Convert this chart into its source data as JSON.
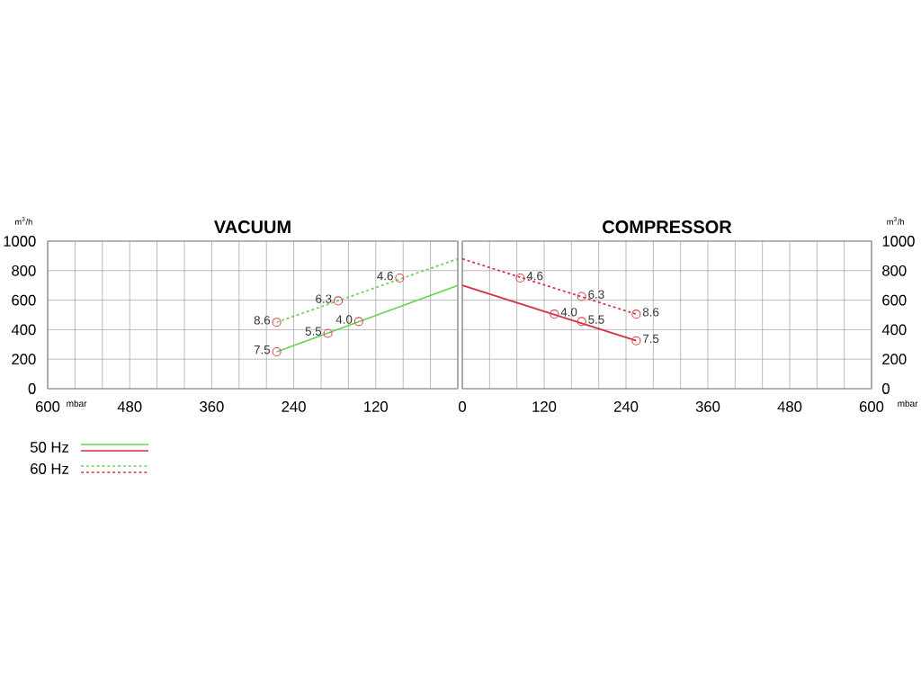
{
  "chart_data": [
    {
      "type": "line",
      "title": "VACUUM",
      "xlabel": "mbar",
      "ylabel": "m$^{3}$/h",
      "xlim": [
        600,
        0
      ],
      "ylim": [
        0,
        1000
      ],
      "xticks": [
        {
          "value": 0,
          "label": null
        },
        {
          "value": 40,
          "label": null
        },
        {
          "value": 80,
          "label": null
        },
        120,
        {
          "value": 160,
          "label": null
        },
        {
          "value": 200,
          "label": null
        },
        240,
        {
          "value": 280,
          "label": null
        },
        {
          "value": 320,
          "label": null
        },
        360,
        {
          "value": 400,
          "label": null
        },
        {
          "value": 440,
          "label": null
        },
        480,
        {
          "value": 520,
          "label": null
        },
        {
          "value": 560,
          "label": null
        },
        600
      ],
      "yticks": [
        0,
        200,
        400,
        600,
        800,
        1000
      ],
      "grid": true,
      "legend": "bottom left",
      "series": [
        {
          "name": "50 Hz",
          "color": "#6ad24e",
          "line_style": "solid",
          "x": [
            265,
            0
          ],
          "values": [
            250,
            700
          ]
        },
        {
          "name": "60 Hz",
          "color": "#6ad24e",
          "line_style": "dotted",
          "x": [
            265,
            0
          ],
          "values": [
            450,
            880
          ]
        },
        {
          "type": "scatter",
          "marker": "circle",
          "color": "#d9434f",
          "x": [
            265,
            190,
            145,
            265,
            175,
            85
          ],
          "values": [
            250,
            375,
            455,
            450,
            595,
            750
          ]
        }
      ],
      "annotations": [
        {
          "text": "7.5",
          "x": 265,
          "y": 250
        },
        {
          "text": "5.5",
          "x": 190,
          "y": 375
        },
        {
          "text": "4.0",
          "x": 145,
          "y": 455
        },
        {
          "text": "8.6",
          "x": 265,
          "y": 450
        },
        {
          "text": "6.3",
          "x": 175,
          "y": 595
        },
        {
          "text": "4.6",
          "x": 85,
          "y": 750
        }
      ]
    },
    {
      "type": "line",
      "title": "COMPRESSOR",
      "xlabel": "mbar",
      "ylabel": "m$^{3}$/h",
      "xlim": [
        0,
        600
      ],
      "ylim": [
        0,
        1000
      ],
      "xticks": [
        0,
        {
          "value": 40,
          "label": null
        },
        {
          "value": 80,
          "label": null
        },
        120,
        {
          "value": 160,
          "label": null
        },
        {
          "value": 200,
          "label": null
        },
        240,
        {
          "value": 280,
          "label": null
        },
        {
          "value": 320,
          "label": null
        },
        360,
        {
          "value": 400,
          "label": null
        },
        {
          "value": 440,
          "label": null
        },
        480,
        {
          "value": 520,
          "label": null
        },
        {
          "value": 560,
          "label": null
        },
        600
      ],
      "yticks": [
        0,
        200,
        400,
        600,
        800,
        1000
      ],
      "grid": true,
      "series": [
        {
          "color": "#d2313f",
          "line_style": "solid",
          "x": [
            0,
            255
          ],
          "values": [
            700,
            325
          ]
        },
        {
          "color": "#d2313f",
          "line_style": "dotted",
          "x": [
            0,
            255
          ],
          "values": [
            880,
            505
          ]
        },
        {
          "type": "scatter",
          "marker": "circle",
          "color": "#d9434f",
          "x": [
            85,
            175,
            255,
            135,
            175,
            255
          ],
          "values": [
            750,
            625,
            505,
            505,
            455,
            325
          ]
        }
      ],
      "annotations": [
        {
          "text": "4.6",
          "x": 85,
          "y": 750
        },
        {
          "text": "6.3",
          "x": 175,
          "y": 625
        },
        {
          "text": "8.6",
          "x": 255,
          "y": 505
        },
        {
          "text": "4.0",
          "x": 135,
          "y": 505
        },
        {
          "text": "5.5",
          "x": 175,
          "y": 455
        },
        {
          "text": "7.5",
          "x": 255,
          "y": 325
        }
      ]
    }
  ]
}
